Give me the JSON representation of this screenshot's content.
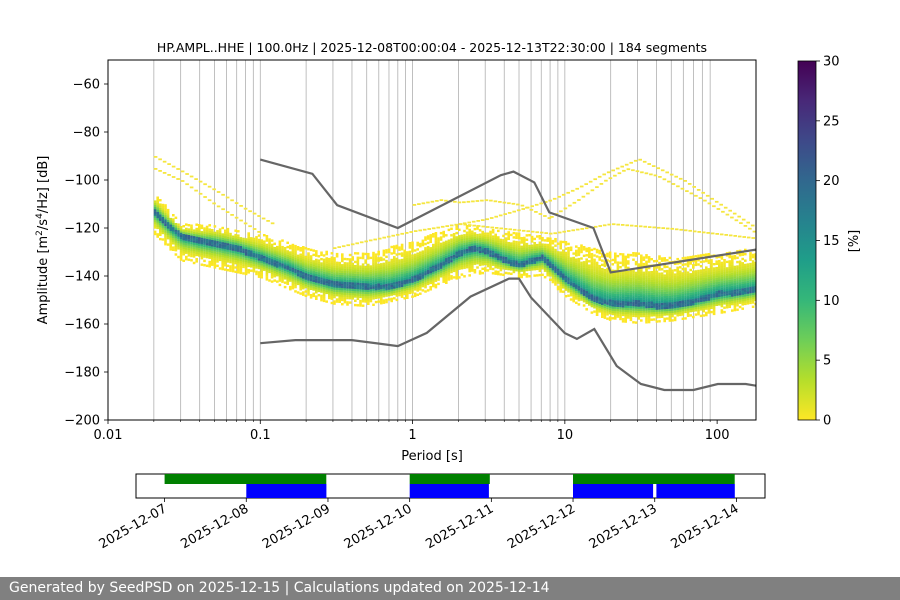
{
  "chart_data": [
    {
      "type": "heatmap",
      "title": "HP.AMPL..HHE | 100.0Hz | 2025-12-08T00:00:04 - 2025-12-13T22:30:00 | 184 segments",
      "xlabel": "Period [s]",
      "ylabel_prefix": "Amplitude [m",
      "ylabel_sup1": "2",
      "ylabel_mid": "/s",
      "ylabel_sup2": "4",
      "ylabel_suffix": "/Hz] [dB]",
      "xscale": "log",
      "xlim": [
        0.01,
        180
      ],
      "ylim": [
        -200,
        -50
      ],
      "xticks": [
        0.01,
        0.1,
        1,
        10,
        100
      ],
      "xtick_labels": [
        "0.01",
        "0.1",
        "1",
        "10",
        "100"
      ],
      "yticks": [
        -200,
        -180,
        -160,
        -140,
        -120,
        -100,
        -80,
        -60
      ],
      "ytick_labels": [
        "−200",
        "−180",
        "−160",
        "−140",
        "−120",
        "−100",
        "−80",
        "−60"
      ],
      "grid": "vertical lines at periods 0.01–0.1, 0.1–1, 1–10, 10–100",
      "colorbar": {
        "label": "[%]",
        "range": [
          0,
          30
        ],
        "ticks": [
          0,
          5,
          10,
          15,
          20,
          25,
          30
        ],
        "tick_labels": [
          "0",
          "5",
          "10",
          "15",
          "20",
          "25",
          "30"
        ],
        "colormap": [
          "#fde725",
          "#b5de2b",
          "#6ece58",
          "#35b779",
          "#1f9e89",
          "#26828e",
          "#31688e",
          "#3e4989",
          "#482878",
          "#440154"
        ]
      },
      "mode_curve": {
        "period": [
          0.02,
          0.025,
          0.03,
          0.04,
          0.05,
          0.07,
          0.1,
          0.15,
          0.2,
          0.3,
          0.5,
          0.7,
          1,
          1.5,
          2,
          2.5,
          3,
          4,
          5,
          6,
          7,
          8,
          10,
          13,
          15,
          20,
          30,
          40,
          50,
          70,
          100,
          150,
          180
        ],
        "db": [
          -113,
          -119,
          -123,
          -125,
          -126,
          -128,
          -132,
          -136,
          -140,
          -143,
          -144,
          -144,
          -141,
          -135,
          -130,
          -128,
          -129,
          -133,
          -135,
          -133,
          -132,
          -135,
          -141,
          -146,
          -149,
          -151,
          -151,
          -152,
          -152,
          -150,
          -147,
          -146,
          -145
        ]
      },
      "density_band": {
        "period": [
          0.02,
          0.03,
          0.05,
          0.1,
          0.2,
          0.3,
          0.5,
          1,
          2,
          3,
          5,
          7,
          10,
          15,
          20,
          30,
          50,
          100,
          180
        ],
        "lower_db": [
          -122,
          -133,
          -136,
          -140,
          -148,
          -151,
          -152,
          -148,
          -140,
          -138,
          -140,
          -139,
          -148,
          -155,
          -158,
          -159,
          -158,
          -155,
          -152
        ],
        "upper_db": [
          -105,
          -118,
          -118,
          -122,
          -128,
          -130,
          -130,
          -125,
          -118,
          -119,
          -122,
          -123,
          -125,
          -128,
          -130,
          -130,
          -132,
          -130,
          -128
        ]
      },
      "sparse_traces_db": [
        {
          "period": [
            0.02,
            0.03,
            0.05,
            0.08,
            0.12
          ],
          "db": [
            -90,
            -96,
            -104,
            -112,
            -118
          ]
        },
        {
          "period": [
            0.02,
            0.03,
            0.05,
            0.1
          ],
          "db": [
            -95,
            -100,
            -110,
            -122
          ]
        },
        {
          "period": [
            1,
            1.5,
            2,
            3,
            5,
            8
          ],
          "db": [
            -110,
            -108,
            -109,
            -108,
            -110,
            -116
          ]
        },
        {
          "period": [
            2,
            3,
            5,
            8,
            12,
            18,
            30,
            60,
            180
          ],
          "db": [
            -118,
            -116,
            -112,
            -108,
            -103,
            -97,
            -91,
            -100,
            -120
          ]
        },
        {
          "period": [
            8,
            12,
            18,
            25,
            40,
            80,
            180
          ],
          "db": [
            -115,
            -108,
            -100,
            -95,
            -98,
            -108,
            -122
          ]
        },
        {
          "period": [
            0.3,
            0.5,
            1,
            2,
            4,
            8,
            20,
            50,
            180
          ],
          "db": [
            -128,
            -125,
            -121,
            -118,
            -120,
            -122,
            -118,
            -120,
            -124
          ]
        }
      ],
      "nlnm": {
        "period": [
          0.1,
          0.17,
          0.4,
          0.8,
          1.24,
          2.4,
          4.3,
          5.0,
          6.0,
          10.0,
          12.0,
          15.6,
          21.9,
          31.6,
          45.0,
          70.0,
          101.0,
          154.0,
          180.0
        ],
        "db": [
          -168.0,
          -166.7,
          -166.7,
          -169.2,
          -163.7,
          -148.6,
          -141.1,
          -141.1,
          -149.0,
          -163.8,
          -166.2,
          -162.1,
          -177.5,
          -185.0,
          -187.5,
          -187.5,
          -185.0,
          -185.0,
          -185.7
        ]
      },
      "nhnm": {
        "period": [
          0.1,
          0.22,
          0.32,
          0.8,
          3.8,
          4.6,
          6.3,
          7.9,
          15.4,
          20.0,
          180.0
        ],
        "db": [
          -91.5,
          -97.4,
          -110.5,
          -120.0,
          -98.0,
          -96.5,
          -101.0,
          -113.5,
          -120.0,
          -138.5,
          -129.0
        ]
      }
    },
    {
      "type": "timeline",
      "dates": [
        "2025-12-07",
        "2025-12-08",
        "2025-12-09",
        "2025-12-10",
        "2025-12-11",
        "2025-12-12",
        "2025-12-13",
        "2025-12-14"
      ],
      "xlim_days": [
        -0.35,
        7.35
      ],
      "green_segments_days": [
        [
          0.0,
          1.98
        ],
        [
          3.0,
          3.98
        ],
        [
          5.0,
          6.98
        ]
      ],
      "blue_segments_days": [
        [
          1.0,
          1.98
        ],
        [
          3.0,
          3.97
        ],
        [
          5.0,
          5.98
        ],
        [
          6.02,
          6.98
        ]
      ],
      "colors": {
        "green": "#008000",
        "blue": "#0000ff"
      }
    }
  ],
  "footer": {
    "text": "Generated by SeedPSD on 2025-12-15 | Calculations updated on 2025-12-14"
  }
}
